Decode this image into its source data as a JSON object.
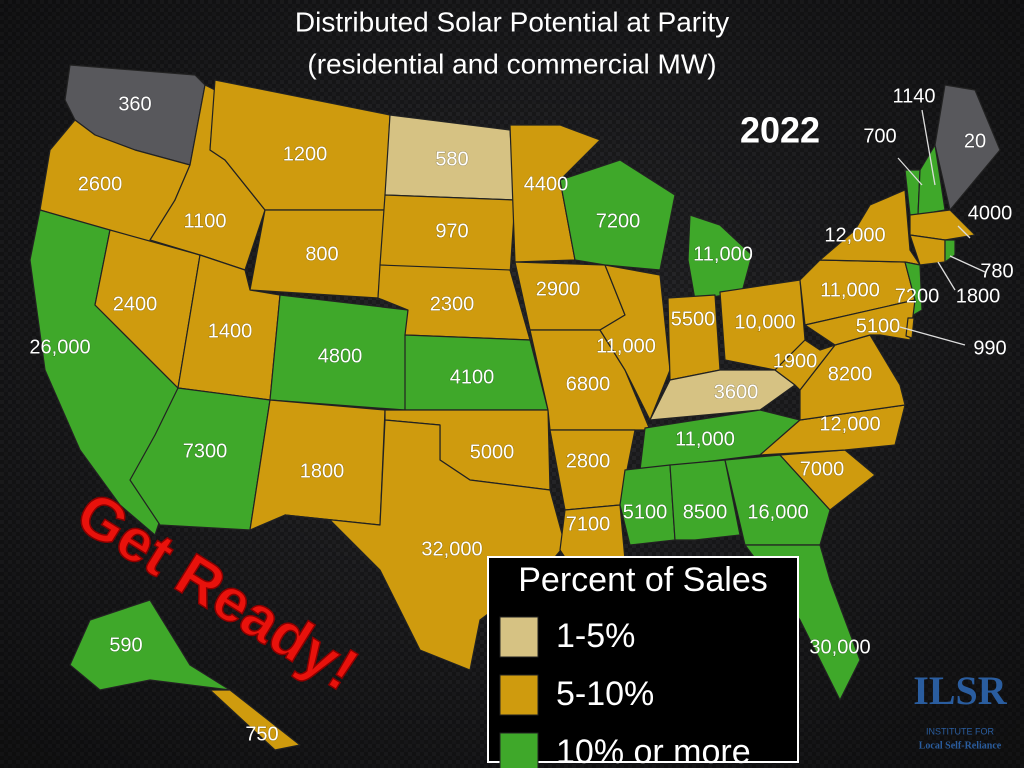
{
  "title": "Distributed Solar Potential at Parity",
  "subtitle": "(residential and commercial MW)",
  "year": "2022",
  "slogan": "Get Ready!",
  "legend": {
    "title": "Percent of Sales",
    "items": [
      {
        "label": "1-5%",
        "color": "#d6c283"
      },
      {
        "label": "5-10%",
        "color": "#cf9b0e"
      },
      {
        "label": "10% or more",
        "color": "#3fa82a"
      }
    ]
  },
  "unclassified_color": "#58585c",
  "states": [
    {
      "label": "360",
      "category": null
    },
    {
      "label": "2600",
      "category": 1
    },
    {
      "label": "26,000",
      "category": 2
    },
    {
      "label": "2400",
      "category": 1
    },
    {
      "label": "1100",
      "category": 1
    },
    {
      "label": "1200",
      "category": 1
    },
    {
      "label": "800",
      "category": 1
    },
    {
      "label": "1400",
      "category": 1
    },
    {
      "label": "4800",
      "category": 2
    },
    {
      "label": "7300",
      "category": 2
    },
    {
      "label": "1800",
      "category": 1
    },
    {
      "label": "580",
      "category": 0
    },
    {
      "label": "970",
      "category": 1
    },
    {
      "label": "2300",
      "category": 1
    },
    {
      "label": "4100",
      "category": 2
    },
    {
      "label": "5000",
      "category": 1
    },
    {
      "label": "32,000",
      "category": 1
    },
    {
      "label": "4400",
      "category": 1
    },
    {
      "label": "2900",
      "category": 1
    },
    {
      "label": "6800",
      "category": 1
    },
    {
      "label": "2800",
      "category": 1
    },
    {
      "label": "7100",
      "category": 1
    },
    {
      "label": "7200",
      "category": 2
    },
    {
      "label": "11,000",
      "category": 1
    },
    {
      "label": "11,000",
      "category": 2
    },
    {
      "label": "5500",
      "category": 1
    },
    {
      "label": "10,000",
      "category": 1
    },
    {
      "label": "3600",
      "category": 0
    },
    {
      "label": "11,000",
      "category": 2
    },
    {
      "label": "5100",
      "category": 2
    },
    {
      "label": "8500",
      "category": 2
    },
    {
      "label": "16,000",
      "category": 2
    },
    {
      "label": "30,000",
      "category": 2
    },
    {
      "label": "7000",
      "category": 1
    },
    {
      "label": "12,000",
      "category": 1
    },
    {
      "label": "8200",
      "category": 1
    },
    {
      "label": "1900",
      "category": 1
    },
    {
      "label": "11,000",
      "category": 1
    },
    {
      "label": "12,000",
      "category": 1
    },
    {
      "label": "7200",
      "category": 2
    },
    {
      "label": "5100",
      "category": 1
    },
    {
      "label": "990",
      "category": 1
    },
    {
      "label": "700",
      "category": 2
    },
    {
      "label": "1140",
      "category": 2
    },
    {
      "label": "20",
      "category": null
    },
    {
      "label": "4000",
      "category": 1
    },
    {
      "label": "1800",
      "category": 1
    },
    {
      "label": "780",
      "category": 2
    },
    {
      "label": "590",
      "category": 2
    },
    {
      "label": "750",
      "category": 1
    }
  ],
  "logo": {
    "name": "ILSR",
    "tagline": "INSTITUTE FOR",
    "subtitle": "Local Self-Reliance"
  }
}
